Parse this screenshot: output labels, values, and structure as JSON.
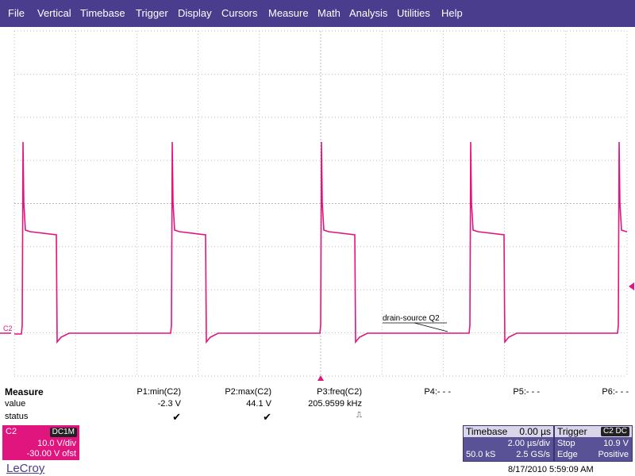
{
  "menu": [
    "File",
    "Vertical",
    "Timebase",
    "Trigger",
    "Display",
    "Cursors",
    "Measure",
    "Math",
    "Analysis",
    "Utilities",
    "Help"
  ],
  "colors": {
    "menu_bg": "#4a3d8e",
    "trace": "#e0157e",
    "grid": "#a8a8a8",
    "panel": "#5a5296"
  },
  "screen": {
    "channel_label": "C2",
    "annotation": "drain-source Q2"
  },
  "measure": {
    "title": "Measure",
    "row_labels": [
      "value",
      "status"
    ],
    "params": [
      {
        "name": "P1:min(C2)",
        "value": "-2.3 V",
        "status": "✔"
      },
      {
        "name": "P2:max(C2)",
        "value": "44.1 V",
        "status": "✔"
      },
      {
        "name": "P3:freq(C2)",
        "value": "205.9599 kHz",
        "status": "⎍"
      },
      {
        "name": "P4:- - -"
      },
      {
        "name": "P5:- - -"
      },
      {
        "name": "P6:- - -"
      }
    ]
  },
  "channel": {
    "name": "C2",
    "coupling": "DC1M",
    "scale": "10.0 V/div",
    "offset": "-30.00 V ofst"
  },
  "timebase": {
    "title": "Timebase",
    "delay": "0.00 µs",
    "scale": "2.00 µs/div",
    "samples": "50.0 kS",
    "rate": "2.5 GS/s"
  },
  "trigger": {
    "title": "Trigger",
    "source": "C2 DC",
    "mode": "Stop",
    "level": "10.9 V",
    "type": "Edge",
    "slope": "Positive"
  },
  "brand": "LeCroy",
  "timestamp": "8/17/2010 5:59:09 AM"
}
